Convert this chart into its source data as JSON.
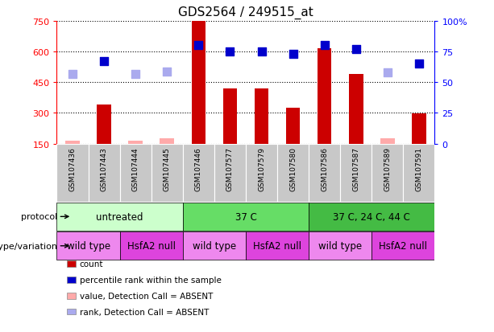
{
  "title": "GDS2564 / 249515_at",
  "samples": [
    "GSM107436",
    "GSM107443",
    "GSM107444",
    "GSM107445",
    "GSM107446",
    "GSM107577",
    "GSM107579",
    "GSM107580",
    "GSM107586",
    "GSM107587",
    "GSM107589",
    "GSM107591"
  ],
  "counts": [
    163,
    340,
    163,
    178,
    748,
    418,
    418,
    325,
    618,
    490,
    178,
    298
  ],
  "absent_count": [
    true,
    false,
    true,
    true,
    false,
    false,
    false,
    false,
    false,
    false,
    true,
    false
  ],
  "percentile_ranks": [
    57,
    67,
    57,
    59,
    80,
    75,
    75,
    73,
    80,
    77,
    58,
    65
  ],
  "absent_rank": [
    true,
    false,
    true,
    true,
    false,
    false,
    false,
    false,
    false,
    false,
    true,
    false
  ],
  "ylim_left": [
    150,
    750
  ],
  "ylim_right": [
    0,
    100
  ],
  "yticks_left": [
    150,
    300,
    450,
    600,
    750
  ],
  "yticks_right": [
    0,
    25,
    50,
    75,
    100
  ],
  "ytick_right_labels": [
    "0",
    "25",
    "50",
    "75",
    "100%"
  ],
  "bar_color_present": "#cc0000",
  "bar_color_absent": "#ffaaaa",
  "dot_color_present": "#0000cc",
  "dot_color_absent": "#aaaaee",
  "protocol_groups": [
    {
      "label": "untreated",
      "start": 0,
      "end": 4,
      "color": "#ccffcc"
    },
    {
      "label": "37 C",
      "start": 4,
      "end": 8,
      "color": "#66dd66"
    },
    {
      "label": "37 C, 24 C, 44 C",
      "start": 8,
      "end": 12,
      "color": "#44bb44"
    }
  ],
  "genotype_groups": [
    {
      "label": "wild type",
      "start": 0,
      "end": 2,
      "color": "#ee88ee"
    },
    {
      "label": "HsfA2 null",
      "start": 2,
      "end": 4,
      "color": "#dd44dd"
    },
    {
      "label": "wild type",
      "start": 4,
      "end": 6,
      "color": "#ee88ee"
    },
    {
      "label": "HsfA2 null",
      "start": 6,
      "end": 8,
      "color": "#dd44dd"
    },
    {
      "label": "wild type",
      "start": 8,
      "end": 10,
      "color": "#ee88ee"
    },
    {
      "label": "HsfA2 null",
      "start": 10,
      "end": 12,
      "color": "#dd44dd"
    }
  ],
  "protocol_label": "protocol",
  "genotype_label": "genotype/variation",
  "legend_items": [
    {
      "label": "count",
      "color": "#cc0000"
    },
    {
      "label": "percentile rank within the sample",
      "color": "#0000cc"
    },
    {
      "label": "value, Detection Call = ABSENT",
      "color": "#ffaaaa"
    },
    {
      "label": "rank, Detection Call = ABSENT",
      "color": "#aaaaee"
    }
  ],
  "bar_width": 0.45,
  "dot_size": 55
}
